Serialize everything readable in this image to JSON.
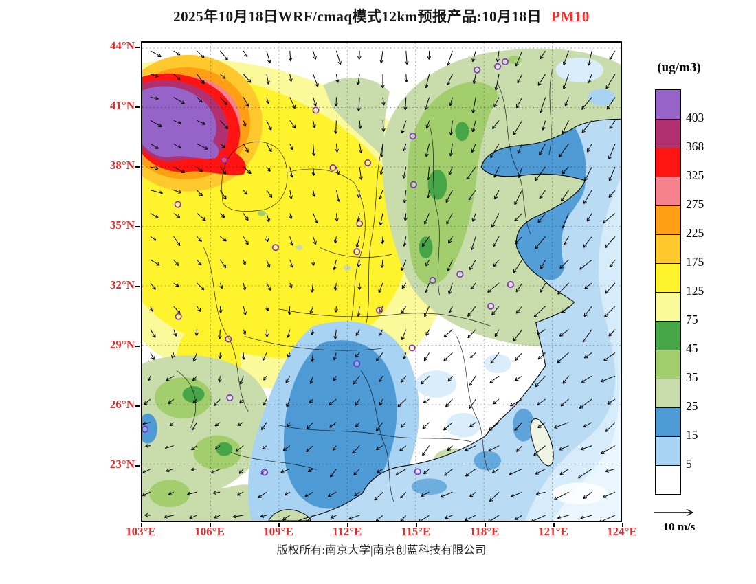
{
  "title": {
    "main": "2025年10月18日WRF/cmaq模式12km预报产品:10月18日",
    "pollutant": "PM10"
  },
  "axes": {
    "x_ticks": [
      "103°E",
      "106°E",
      "109°E",
      "112°E",
      "115°E",
      "118°E",
      "121°E",
      "124°E"
    ],
    "y_ticks": [
      "44°N",
      "41°N",
      "38°N",
      "35°N",
      "32°N",
      "29°N",
      "26°N",
      "23°N"
    ]
  },
  "colorbar": {
    "unit": "(ug/m3)",
    "levels_top_to_bottom": [
      "403",
      "368",
      "325",
      "275",
      "225",
      "175",
      "125",
      "75",
      "45",
      "35",
      "25",
      "15",
      "5"
    ],
    "colors_top_to_bottom": [
      "#9663C8",
      "#B03070",
      "#FF1414",
      "#F5828C",
      "#FFA014",
      "#FFC82D",
      "#FFF32D",
      "#FAFA9B",
      "#46A546",
      "#A2CE6E",
      "#C9DCAB",
      "#4D9AD5",
      "#A9D3F2",
      "#FFFFFF"
    ]
  },
  "wind_reference": {
    "label": "10 m/s"
  },
  "footer": {
    "copyright": "版权所有:南京大学|南京创蓝科技有限公司"
  },
  "colors": {
    "axis_labels": "#E82A2A",
    "title_highlight": "#FF2A2A",
    "frame": "#000000"
  },
  "chart_data": {
    "type": "heatmap",
    "title": "2025年10月18日WRF/cmaq模式12km预报产品:10月18日 PM10",
    "model": "WRF/CMAQ 12km",
    "valid_date": "2025-10-18",
    "variable": "PM10",
    "unit": "ug/m3",
    "x_axis": {
      "ticks": [
        "103°E",
        "106°E",
        "109°E",
        "112°E",
        "115°E",
        "118°E",
        "121°E",
        "124°E"
      ],
      "range_deg_E": [
        103,
        124
      ]
    },
    "y_axis": {
      "ticks": [
        "44°N",
        "41°N",
        "38°N",
        "35°N",
        "32°N",
        "29°N",
        "26°N",
        "23°N"
      ],
      "range_deg_N": [
        20.1,
        44.3
      ]
    },
    "contour_levels": [
      5,
      15,
      25,
      35,
      45,
      75,
      125,
      175,
      225,
      275,
      325,
      368,
      403
    ],
    "palette_low_to_high": [
      "#FFFFFF",
      "#A9D3F2",
      "#4D9AD5",
      "#C9DCAB",
      "#A2CE6E",
      "#46A546",
      "#FAFA9B",
      "#FFF32D",
      "#FFC82D",
      "#FFA014",
      "#F5828C",
      "#FF1414",
      "#B03070",
      "#9663C8"
    ],
    "grid": "dashed lat-lon graticule every 3 degrees",
    "legend_position": "right",
    "overlays": [
      "wind vector field with reference arrow 10 m/s",
      "coastline and province boundaries",
      "purple city ring markers"
    ],
    "field_highlights": [
      {
        "region": "northwest corner ≈103-107°E, 38-41.5°N",
        "value_ug_m3": ">403 (purple maximum with 325-403 red/magenta rim)"
      },
      {
        "region": "north-central China ≈103-116°E, 30-39°N",
        "value_ug_m3": "75-175 (broad yellow area)"
      },
      {
        "region": "northeast China and eastern plain",
        "value_ug_m3": "25-45 (green shades)"
      },
      {
        "region": "Bohai / Yellow Sea coastal waters and south-central inland",
        "value_ug_m3": "15-25 (steel blue)"
      },
      {
        "region": "offshore seas",
        "value_ug_m3": "5-15 (light blue)"
      },
      {
        "region": "Mongolia sector (top center) and southeast inland pockets",
        "value_ug_m3": "<5 (white)"
      }
    ]
  }
}
